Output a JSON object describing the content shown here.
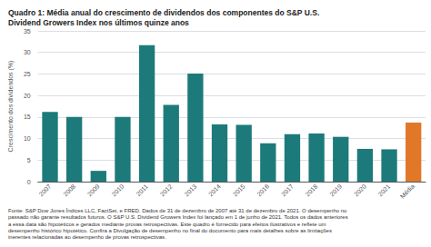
{
  "chart_data": {
    "type": "bar",
    "title": "Quadro 1: Média anual do crescimento de dividendos dos componentes do S&P U.S.\nDividend Growers Index nos últimos quinze anos",
    "footnote": "Fonte: S&P Dow Jones Índices LLC, FactSet, e FRED. Dados de 31 de dezembro de 2007 até 31 de dezembro de 2021. O desempenho no\npassado não garante resultados futuros. O S&P U.S. Dividend Growers Index foi lançado em 1 de junho de 2021. Todos os dados anteriores\na essa data são hipotéticos e gerados mediante provas retrospectivas. Este quadro é fornecido para efeitos ilustrativos e reflete um\ndesempenho histórico hipotético. Confira a Divulgação de desempenho no final do documento para mais detalhes sobre as limitações\ninerentes relacionadas ao desempenho de provas retrospectivas.",
    "ylabel": "Crescimento dos dividendos (%)",
    "categories": [
      "2007",
      "2008",
      "2009",
      "2010",
      "2011",
      "2012",
      "2013",
      "2014",
      "2015",
      "2016",
      "2017",
      "2018",
      "2019",
      "2020",
      "2021",
      "Média"
    ],
    "values": [
      16.2,
      15.0,
      2.5,
      15.0,
      31.7,
      17.8,
      25.1,
      13.3,
      13.2,
      8.9,
      11.0,
      11.2,
      10.4,
      7.6,
      7.5,
      13.7
    ],
    "colors": [
      "#1d7a7a",
      "#1d7a7a",
      "#1d7a7a",
      "#1d7a7a",
      "#1d7a7a",
      "#1d7a7a",
      "#1d7a7a",
      "#1d7a7a",
      "#1d7a7a",
      "#1d7a7a",
      "#1d7a7a",
      "#1d7a7a",
      "#1d7a7a",
      "#1d7a7a",
      "#1d7a7a",
      "#e07828"
    ],
    "ylim": [
      0,
      35
    ],
    "yticks": [
      0,
      5,
      10,
      15,
      20,
      25,
      30,
      35
    ],
    "grid": true
  }
}
